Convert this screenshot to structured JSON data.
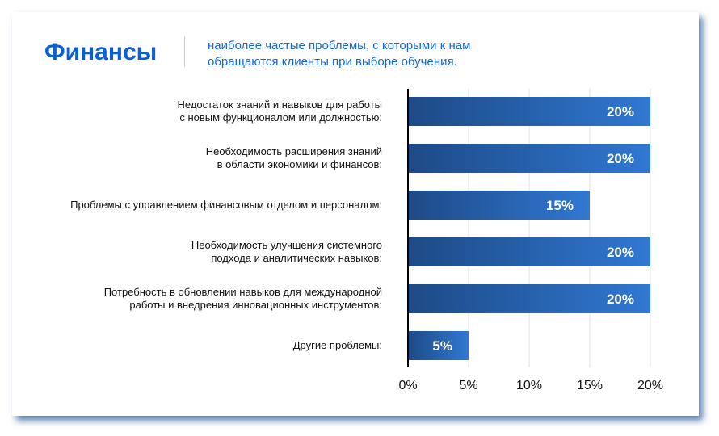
{
  "header": {
    "title": "Финансы",
    "subtitle_lines": [
      "наиболее частые проблемы, с которыми к нам",
      "обращаются клиенты при выборе обучения."
    ]
  },
  "chart_data": {
    "type": "bar",
    "orientation": "horizontal",
    "categories": [
      [
        "Недостаток знаний и навыков для работы",
        "с новым функционалом или должностью:"
      ],
      [
        "Необходимость расширения знаний",
        "в области экономики и финансов:"
      ],
      [
        "Проблемы с управлением финансовым отделом и персоналом:"
      ],
      [
        "Необходимость улучшения системного",
        "подхода и аналитических навыков:"
      ],
      [
        "Потребность в обновлении навыков для международной",
        "работы и внедрения инновационных инструментов:"
      ],
      [
        "Другие проблемы:"
      ]
    ],
    "values": [
      20,
      20,
      15,
      20,
      20,
      5
    ],
    "data_labels": [
      "20%",
      "20%",
      "15%",
      "20%",
      "20%",
      "5%"
    ],
    "xticks": [
      "0%",
      "5%",
      "10%",
      "15%",
      "20%"
    ],
    "xlim": [
      0,
      20
    ],
    "grid": true,
    "colors": {
      "bar_start": "#1d4a86",
      "bar_end": "#3078d2",
      "accent": "#0a5fd4"
    }
  }
}
